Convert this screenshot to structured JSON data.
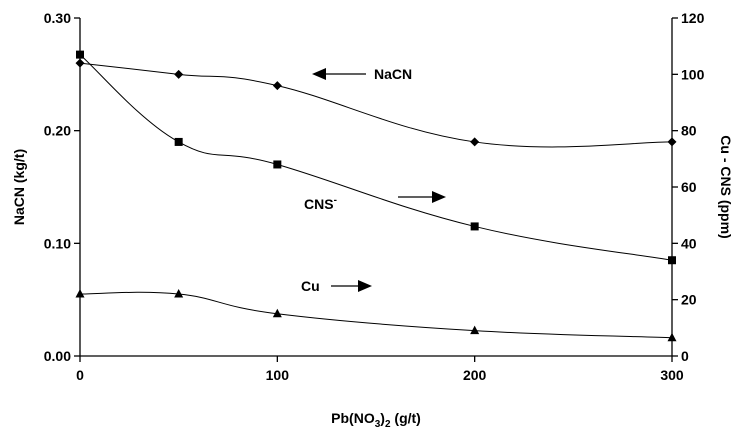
{
  "chart_data": {
    "type": "line",
    "xlabel": "Pb(NO3)2 (g/t)",
    "xlabel_parts": {
      "pre": "Pb(NO",
      "sub1": "3",
      "mid": ")",
      "sub2": "2",
      "post": " (g/t)"
    },
    "ylabel_left": "NaCN (kg/t)",
    "ylabel_right": "Cu - CNS (ppm)",
    "xlim": [
      0,
      300
    ],
    "ylim_left": [
      0,
      0.3
    ],
    "ylim_right": [
      0,
      120
    ],
    "x_ticks": [
      "0",
      "100",
      "200",
      "300"
    ],
    "x_tick_values": [
      0,
      100,
      200,
      300
    ],
    "y_left_ticks": [
      "0.00",
      "0.10",
      "0.20",
      "0.30"
    ],
    "y_left_tick_values": [
      0,
      0.1,
      0.2,
      0.3
    ],
    "y_right_ticks": [
      "0",
      "20",
      "40",
      "60",
      "80",
      "100",
      "120"
    ],
    "y_right_tick_values": [
      0,
      20,
      40,
      60,
      80,
      100,
      120
    ],
    "grid": false,
    "series": [
      {
        "name": "NaCN",
        "axis": "left",
        "marker": "diamond",
        "x": [
          0,
          50,
          100,
          200,
          300
        ],
        "y": [
          0.26,
          0.25,
          0.24,
          0.19,
          0.19
        ]
      },
      {
        "name": "CNS",
        "superscript": "-",
        "axis": "right",
        "marker": "square",
        "x": [
          0,
          50,
          100,
          200,
          300
        ],
        "y": [
          107,
          76,
          68,
          46,
          34
        ]
      },
      {
        "name": "Cu",
        "axis": "right",
        "marker": "triangle",
        "x": [
          0,
          50,
          100,
          200,
          300
        ],
        "y": [
          22,
          22,
          15,
          9,
          6.5
        ]
      }
    ],
    "annotations": [
      {
        "text": "NaCN",
        "arrow": "left"
      },
      {
        "text": "CNS",
        "superscript": "-",
        "arrow": "right"
      },
      {
        "text": "Cu",
        "arrow": "right"
      }
    ]
  }
}
